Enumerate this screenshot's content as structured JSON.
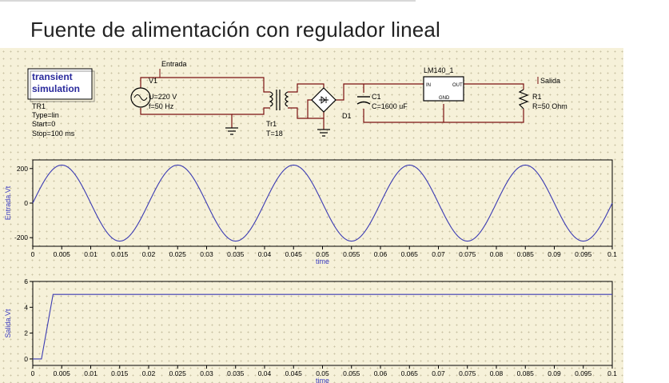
{
  "title": "Fuente de alimentación con regulador lineal",
  "sim_box": {
    "line1": "transient",
    "line2": "simulation",
    "name": "TR1",
    "type": "Type=lin",
    "start": "Start=0",
    "stop": "Stop=100 ms"
  },
  "components": {
    "entrada_label": "Entrada",
    "v1": {
      "name": "V1",
      "u": "U=220 V",
      "f": "f=50 Hz"
    },
    "tr1": {
      "name": "Tr1",
      "t": "T=18"
    },
    "d1": "D1",
    "c1": {
      "name": "C1",
      "c": "C=1600 uF"
    },
    "reg": {
      "name": "LM140_1",
      "pin_in": "IN",
      "pin_out": "OUT",
      "pin_gnd": "GND"
    },
    "salida_label": "Salida",
    "r1": {
      "name": "R1",
      "r": "R=50 Ohm"
    }
  },
  "chart_data": [
    {
      "type": "line",
      "ylabel": "Entrada.Vt",
      "xlabel": "time",
      "xlim": [
        0,
        0.1
      ],
      "ylim": [
        -250,
        250
      ],
      "yticks": [
        "200",
        "0",
        "-200"
      ],
      "ytick_values": [
        200,
        0,
        -200
      ],
      "xticks": [
        "0",
        "0.005",
        "0.01",
        "0.015",
        "0.02",
        "0.025",
        "0.03",
        "0.035",
        "0.04",
        "0.045",
        "0.05",
        "0.055",
        "0.06",
        "0.065",
        "0.07",
        "0.075",
        "0.08",
        "0.085",
        "0.09",
        "0.095",
        "0.1"
      ],
      "series": [
        {
          "amplitude": 220,
          "frequency_hz": 50,
          "phase": "sine",
          "color": "#3b3bb3"
        }
      ]
    },
    {
      "type": "line",
      "ylabel": "Salida.Vt",
      "xlabel": "time",
      "xlim": [
        0,
        0.1
      ],
      "ylim": [
        -0.5,
        6
      ],
      "yticks": [
        "6",
        "4",
        "2",
        "0"
      ],
      "ytick_values": [
        6,
        4,
        2,
        0
      ],
      "xticks": [
        "0",
        "0.005",
        "0.01",
        "0.015",
        "0.02",
        "0.025",
        "0.03",
        "0.035",
        "0.04",
        "0.045",
        "0.05",
        "0.055",
        "0.06",
        "0.065",
        "0.07",
        "0.075",
        "0.08",
        "0.085",
        "0.09",
        "0.095",
        "0.1"
      ],
      "series": [
        {
          "x": [
            0,
            0.0015,
            0.0035,
            0.1
          ],
          "y": [
            0,
            0,
            5,
            5
          ],
          "color": "#3b3bb3"
        }
      ]
    }
  ]
}
